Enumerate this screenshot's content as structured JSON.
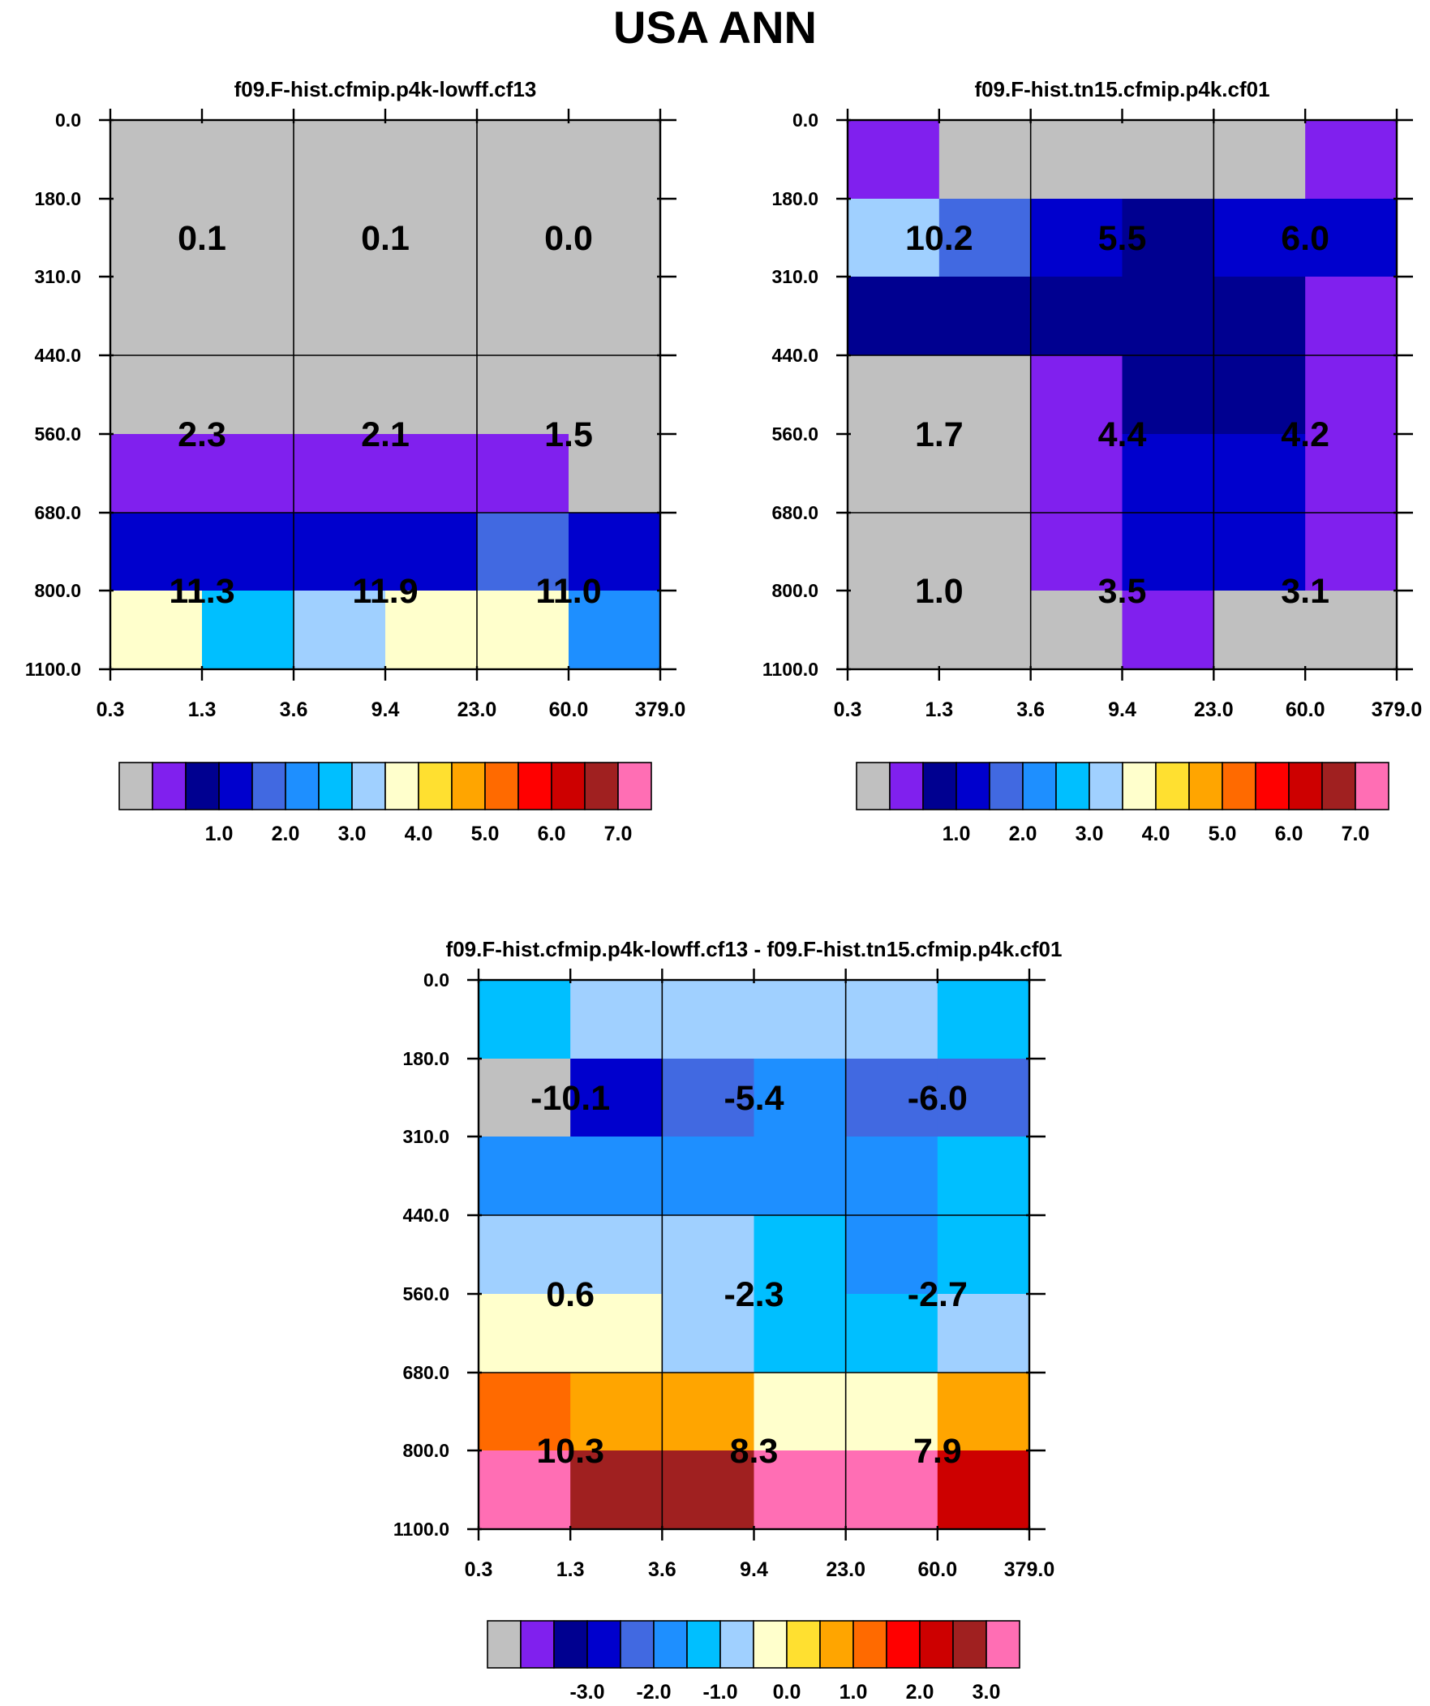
{
  "title": "USA ANN",
  "palette": [
    "#c0c0c0",
    "#8020ee",
    "#000090",
    "#0000cd",
    "#4169e1",
    "#1e8fff",
    "#00bfff",
    "#a0d0ff",
    "#ffffcc",
    "#ffe030",
    "#ffa500",
    "#ff6a00",
    "#ff0000",
    "#cd0000",
    "#a02020",
    "#ff6eb4"
  ],
  "chart_data": [
    {
      "type": "heatmap",
      "title": "f09.F-hist.cfmip.p4k-lowff.cf13",
      "x_ticks": [
        "0.3",
        "1.3",
        "3.6",
        "9.4",
        "23.0",
        "60.0",
        "379.0"
      ],
      "y_ticks": [
        "0.0",
        "180.0",
        "310.0",
        "440.0",
        "560.0",
        "680.0",
        "800.0",
        "1100.0"
      ],
      "cell_colors": [
        [
          0,
          0,
          0,
          0,
          0,
          0
        ],
        [
          0,
          0,
          0,
          0,
          0,
          0
        ],
        [
          0,
          0,
          0,
          0,
          0,
          0
        ],
        [
          0,
          0,
          0,
          0,
          0,
          0
        ],
        [
          1,
          1,
          1,
          1,
          1,
          0
        ],
        [
          3,
          3,
          3,
          3,
          4,
          3
        ],
        [
          8,
          6,
          7,
          8,
          8,
          5
        ]
      ],
      "region_values": [
        [
          "0.1",
          "0.1",
          "0.0"
        ],
        [
          "2.3",
          "2.1",
          "1.5"
        ],
        [
          "11.3",
          "11.9",
          "11.0"
        ]
      ],
      "colorbar_labels": [
        "1.0",
        "2.0",
        "3.0",
        "4.0",
        "5.0",
        "6.0",
        "7.0"
      ]
    },
    {
      "type": "heatmap",
      "title": "f09.F-hist.tn15.cfmip.p4k.cf01",
      "x_ticks": [
        "0.3",
        "1.3",
        "3.6",
        "9.4",
        "23.0",
        "60.0",
        "379.0"
      ],
      "y_ticks": [
        "0.0",
        "180.0",
        "310.0",
        "440.0",
        "560.0",
        "680.0",
        "800.0",
        "1100.0"
      ],
      "cell_colors": [
        [
          1,
          0,
          0,
          0,
          0,
          1
        ],
        [
          7,
          4,
          3,
          2,
          3,
          3
        ],
        [
          2,
          2,
          2,
          2,
          2,
          1
        ],
        [
          0,
          0,
          1,
          2,
          2,
          1
        ],
        [
          0,
          0,
          1,
          3,
          3,
          1
        ],
        [
          0,
          0,
          1,
          3,
          3,
          1
        ],
        [
          0,
          0,
          0,
          1,
          0,
          0
        ]
      ],
      "region_values": [
        [
          "10.2",
          "5.5",
          "6.0"
        ],
        [
          "1.7",
          "4.4",
          "4.2"
        ],
        [
          "1.0",
          "3.5",
          "3.1"
        ]
      ],
      "colorbar_labels": [
        "1.0",
        "2.0",
        "3.0",
        "4.0",
        "5.0",
        "6.0",
        "7.0"
      ]
    },
    {
      "type": "heatmap",
      "title": "f09.F-hist.cfmip.p4k-lowff.cf13 - f09.F-hist.tn15.cfmip.p4k.cf01",
      "x_ticks": [
        "0.3",
        "1.3",
        "3.6",
        "9.4",
        "23.0",
        "60.0",
        "379.0"
      ],
      "y_ticks": [
        "0.0",
        "180.0",
        "310.0",
        "440.0",
        "560.0",
        "680.0",
        "800.0",
        "1100.0"
      ],
      "cell_colors": [
        [
          6,
          7,
          7,
          7,
          7,
          6
        ],
        [
          0,
          3,
          4,
          5,
          4,
          4
        ],
        [
          5,
          5,
          5,
          5,
          5,
          6
        ],
        [
          7,
          7,
          7,
          6,
          5,
          6
        ],
        [
          8,
          8,
          7,
          6,
          6,
          7
        ],
        [
          11,
          10,
          10,
          8,
          8,
          10
        ],
        [
          15,
          14,
          14,
          15,
          15,
          13
        ]
      ],
      "region_values": [
        [
          "-10.1",
          "-5.4",
          "-6.0"
        ],
        [
          "0.6",
          "-2.3",
          "-2.7"
        ],
        [
          "10.3",
          "8.3",
          "7.9"
        ]
      ],
      "colorbar_labels": [
        "-3.0",
        "-2.0",
        "-1.0",
        "0.0",
        "1.0",
        "2.0",
        "3.0"
      ]
    }
  ]
}
